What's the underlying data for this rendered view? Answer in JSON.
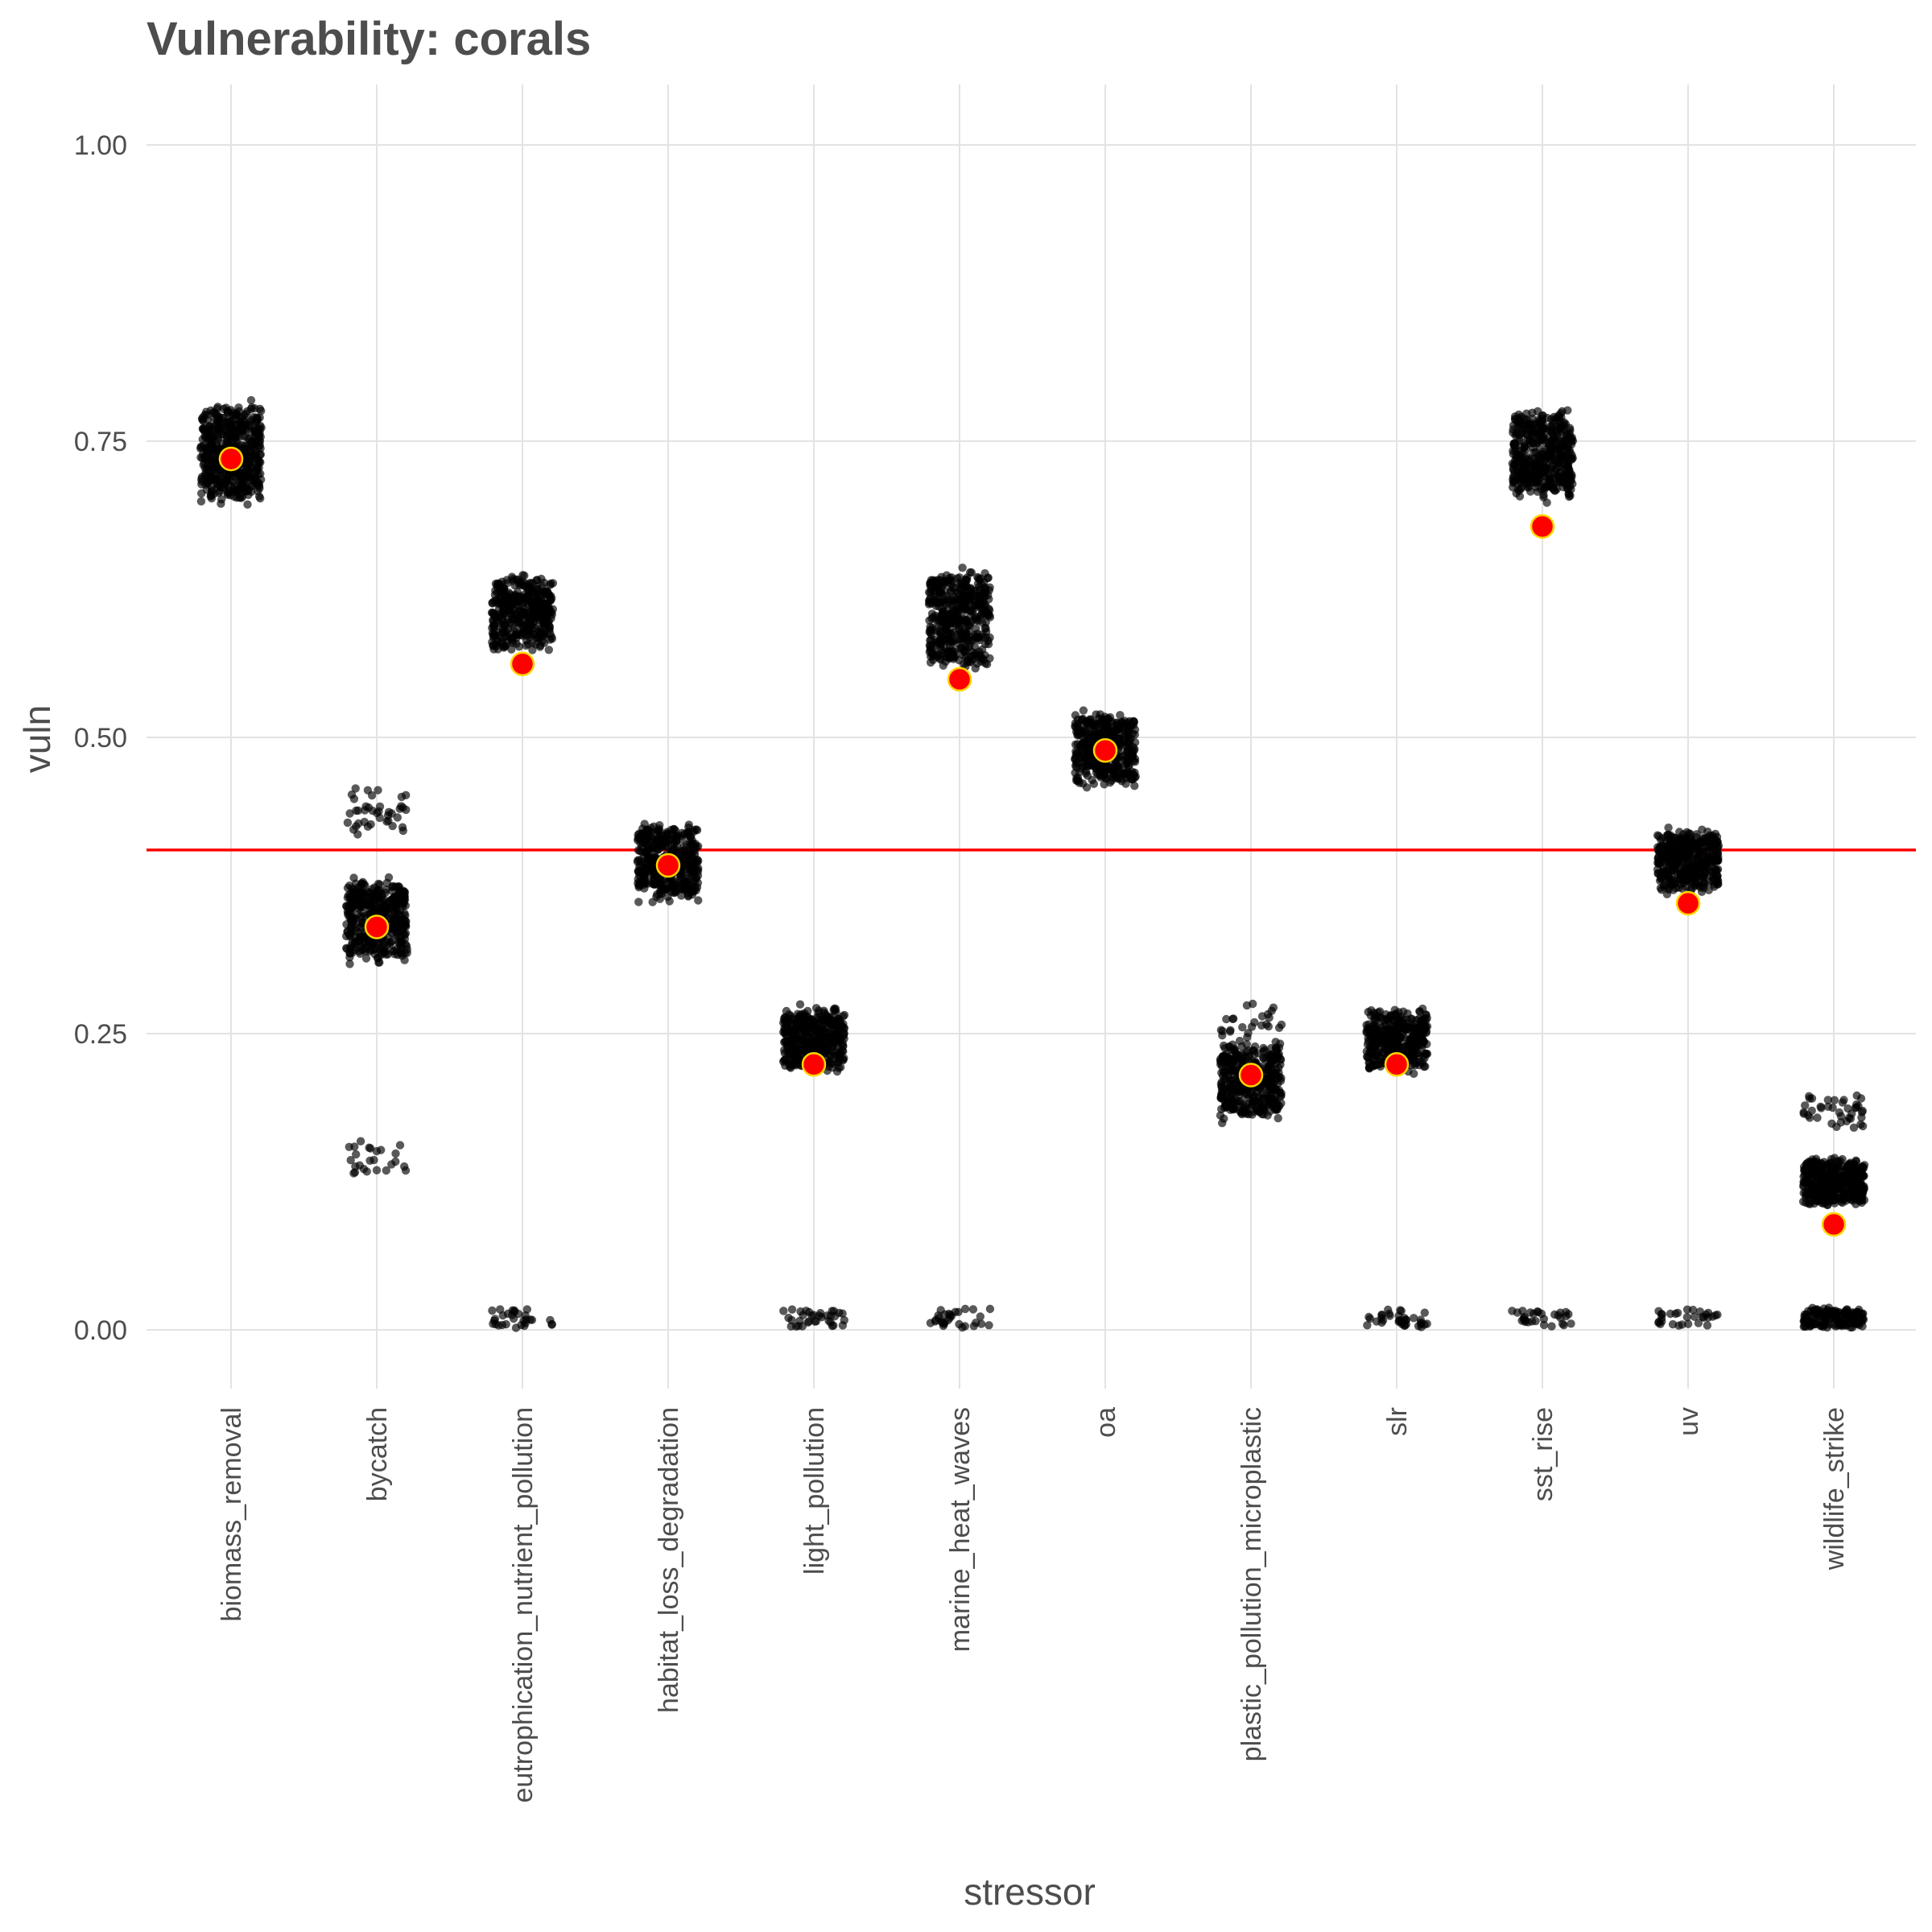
{
  "chart_data": {
    "type": "scatter",
    "title": "Vulnerability: corals",
    "xlabel": "stressor",
    "ylabel": "vuln",
    "ylim": [
      -0.12,
      1.05
    ],
    "yticks": [
      0.0,
      0.25,
      0.5,
      0.75,
      1.0
    ],
    "ytick_labels": [
      "0.00",
      "0.25",
      "0.50",
      "0.75",
      "1.00"
    ],
    "grid": true,
    "categories": [
      "biomass_removal",
      "bycatch",
      "eutrophication_nutrient_pollution",
      "habitat_loss_degradation",
      "light_pollution",
      "marine_heat_waves",
      "oa",
      "plastic_pollution_microplastic",
      "slr",
      "sst_rise",
      "uv",
      "wildlife_strike"
    ],
    "reference_line": {
      "y": 0.405,
      "color": "#ff0000"
    },
    "point_estimates": [
      0.735,
      0.34,
      0.562,
      0.392,
      0.224,
      0.549,
      0.489,
      0.215,
      0.224,
      0.678,
      0.36,
      0.089
    ],
    "jitter_clusters": [
      [
        {
          "center": 0.74,
          "spread": 0.04,
          "n": 500
        }
      ],
      [
        {
          "center": 0.345,
          "spread": 0.033,
          "n": 400
        },
        {
          "center": 0.437,
          "spread": 0.02,
          "n": 40
        },
        {
          "center": 0.145,
          "spread": 0.017,
          "n": 25
        }
      ],
      [
        {
          "center": 0.605,
          "spread": 0.03,
          "n": 400
        },
        {
          "center": 0.01,
          "spread": 0.008,
          "n": 30
        }
      ],
      [
        {
          "center": 0.395,
          "spread": 0.03,
          "n": 400
        }
      ],
      [
        {
          "center": 0.245,
          "spread": 0.025,
          "n": 400
        },
        {
          "center": 0.01,
          "spread": 0.008,
          "n": 35
        }
      ],
      [
        {
          "center": 0.6,
          "spread": 0.04,
          "n": 450
        },
        {
          "center": 0.01,
          "spread": 0.008,
          "n": 30
        }
      ],
      [
        {
          "center": 0.49,
          "spread": 0.03,
          "n": 400
        }
      ],
      [
        {
          "center": 0.21,
          "spread": 0.03,
          "n": 400
        },
        {
          "center": 0.26,
          "spread": 0.015,
          "n": 25
        }
      ],
      [
        {
          "center": 0.245,
          "spread": 0.025,
          "n": 400
        },
        {
          "center": 0.01,
          "spread": 0.008,
          "n": 35
        }
      ],
      [
        {
          "center": 0.74,
          "spread": 0.035,
          "n": 450
        },
        {
          "center": 0.01,
          "spread": 0.008,
          "n": 30
        }
      ],
      [
        {
          "center": 0.395,
          "spread": 0.025,
          "n": 400
        },
        {
          "center": 0.01,
          "spread": 0.008,
          "n": 30
        }
      ],
      [
        {
          "center": 0.125,
          "spread": 0.02,
          "n": 400
        },
        {
          "center": 0.185,
          "spread": 0.015,
          "n": 40
        },
        {
          "center": 0.01,
          "spread": 0.008,
          "n": 150
        }
      ]
    ],
    "colors": {
      "jitter_points": "#000000",
      "estimate_fill": "#ff0000",
      "estimate_stroke": "#ffd700",
      "grid": "#e3e3e3",
      "text": "#4d4d4d"
    }
  }
}
